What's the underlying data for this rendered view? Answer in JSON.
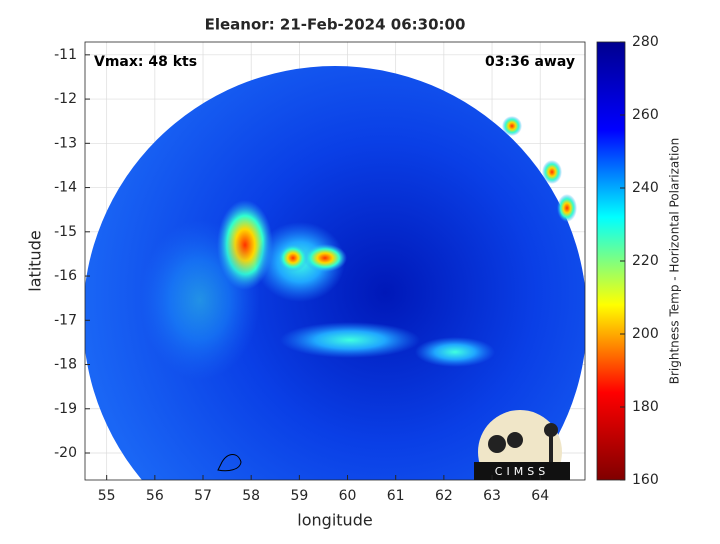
{
  "chart_data": {
    "type": "image",
    "title": "Eleanor: 21-Feb-2024 06:30:00",
    "annotations": [
      "Vmax: 48 kts",
      "03:36 away"
    ],
    "x_label": "longitude",
    "y_label": "latitude",
    "xlim": [
      54.55,
      64.93
    ],
    "xticks": [
      55,
      56,
      57,
      58,
      59,
      60,
      61,
      62,
      63,
      64
    ],
    "ylim": [
      -20.61,
      -10.71
    ],
    "yticks": [
      -20,
      -19,
      -18,
      -17,
      -16,
      -15,
      -14,
      -13,
      -12,
      -11
    ],
    "grid": true,
    "colorbar": {
      "label": "Brightness Temp - Horizontal Polarization",
      "clim": [
        160,
        280
      ],
      "ticks": [
        160,
        180,
        200,
        220,
        240,
        260,
        280
      ],
      "colormap": [
        "#800000",
        "#ff0000",
        "#ffff00",
        "#00ffff",
        "#0000ff",
        "#00008f"
      ]
    },
    "logo": "CIMSS"
  }
}
